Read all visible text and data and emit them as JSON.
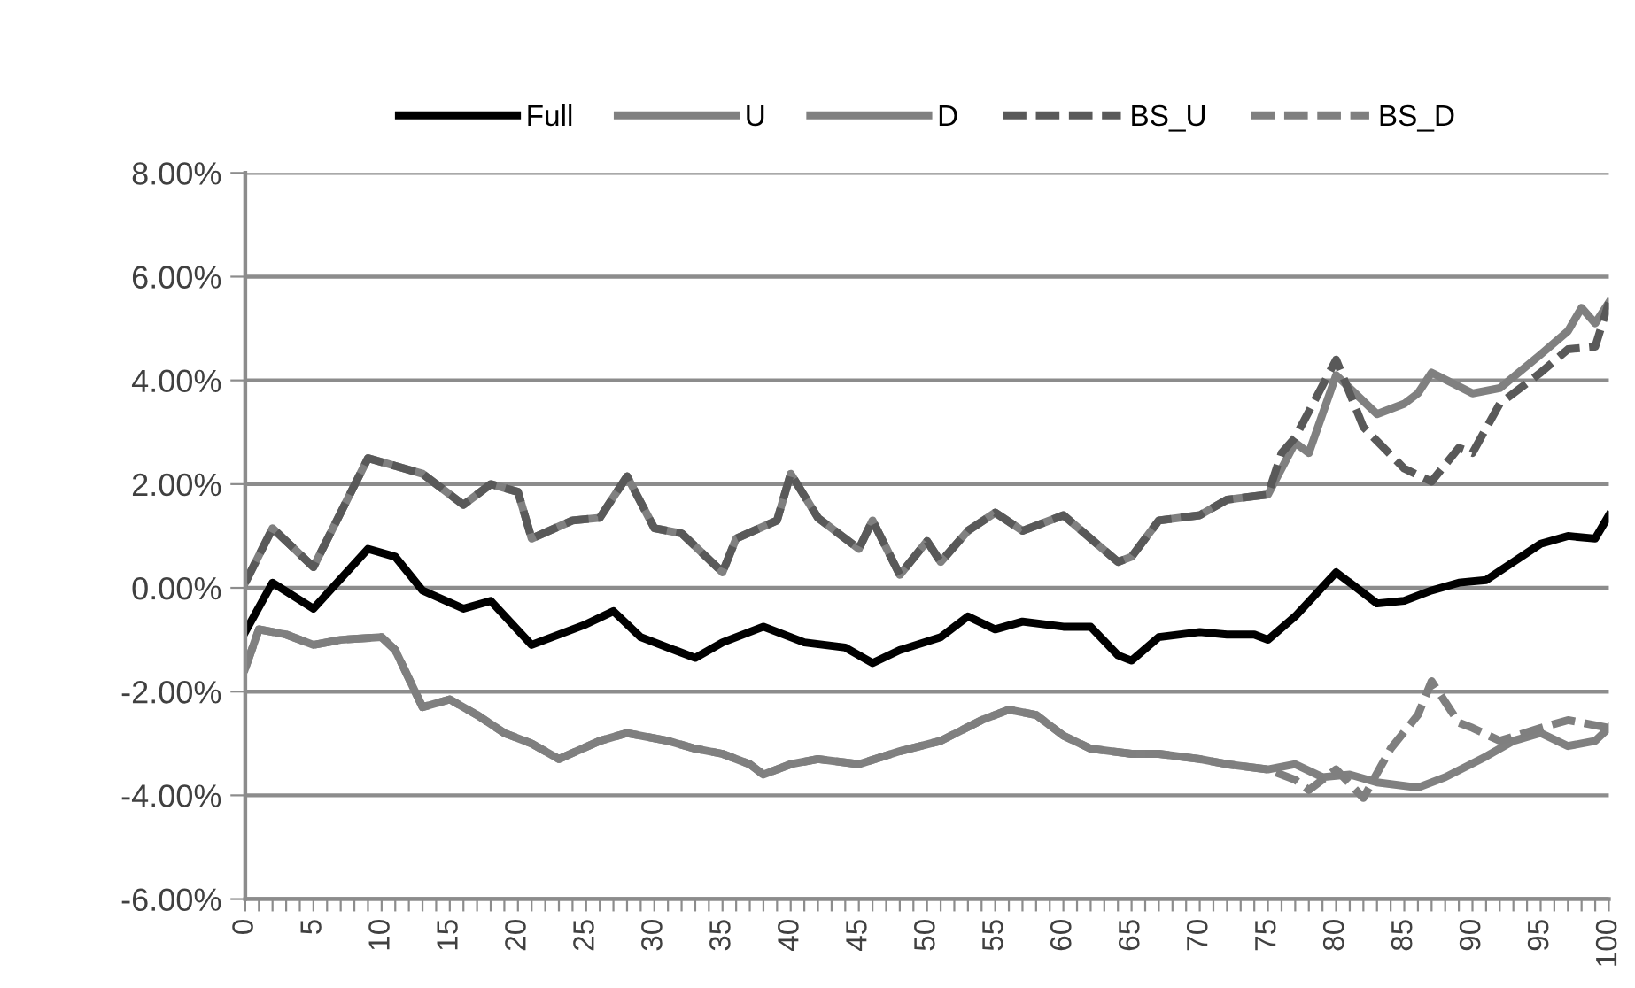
{
  "chart_data": {
    "type": "line",
    "legend": "top",
    "grid": "y",
    "xlim": [
      0,
      100
    ],
    "xticks": [
      0,
      {
        "value": 1,
        "label": null
      },
      {
        "value": 2,
        "label": null
      },
      {
        "value": 3,
        "label": null
      },
      {
        "value": 4,
        "label": null
      },
      5,
      {
        "value": 6,
        "label": null
      },
      {
        "value": 7,
        "label": null
      },
      {
        "value": 8,
        "label": null
      },
      {
        "value": 9,
        "label": null
      },
      10,
      {
        "value": 11,
        "label": null
      },
      {
        "value": 12,
        "label": null
      },
      {
        "value": 13,
        "label": null
      },
      {
        "value": 14,
        "label": null
      },
      15,
      {
        "value": 16,
        "label": null
      },
      {
        "value": 17,
        "label": null
      },
      {
        "value": 18,
        "label": null
      },
      {
        "value": 19,
        "label": null
      },
      20,
      {
        "value": 21,
        "label": null
      },
      {
        "value": 22,
        "label": null
      },
      {
        "value": 23,
        "label": null
      },
      {
        "value": 24,
        "label": null
      },
      25,
      {
        "value": 26,
        "label": null
      },
      {
        "value": 27,
        "label": null
      },
      {
        "value": 28,
        "label": null
      },
      {
        "value": 29,
        "label": null
      },
      30,
      {
        "value": 31,
        "label": null
      },
      {
        "value": 32,
        "label": null
      },
      {
        "value": 33,
        "label": null
      },
      {
        "value": 34,
        "label": null
      },
      35,
      {
        "value": 36,
        "label": null
      },
      {
        "value": 37,
        "label": null
      },
      {
        "value": 38,
        "label": null
      },
      {
        "value": 39,
        "label": null
      },
      40,
      {
        "value": 41,
        "label": null
      },
      {
        "value": 42,
        "label": null
      },
      {
        "value": 43,
        "label": null
      },
      {
        "value": 44,
        "label": null
      },
      45,
      {
        "value": 46,
        "label": null
      },
      {
        "value": 47,
        "label": null
      },
      {
        "value": 48,
        "label": null
      },
      {
        "value": 49,
        "label": null
      },
      50,
      {
        "value": 51,
        "label": null
      },
      {
        "value": 52,
        "label": null
      },
      {
        "value": 53,
        "label": null
      },
      {
        "value": 54,
        "label": null
      },
      55,
      {
        "value": 56,
        "label": null
      },
      {
        "value": 57,
        "label": null
      },
      {
        "value": 58,
        "label": null
      },
      {
        "value": 59,
        "label": null
      },
      60,
      {
        "value": 61,
        "label": null
      },
      {
        "value": 62,
        "label": null
      },
      {
        "value": 63,
        "label": null
      },
      {
        "value": 64,
        "label": null
      },
      65,
      {
        "value": 66,
        "label": null
      },
      {
        "value": 67,
        "label": null
      },
      {
        "value": 68,
        "label": null
      },
      {
        "value": 69,
        "label": null
      },
      70,
      {
        "value": 71,
        "label": null
      },
      {
        "value": 72,
        "label": null
      },
      {
        "value": 73,
        "label": null
      },
      {
        "value": 74,
        "label": null
      },
      75,
      {
        "value": 76,
        "label": null
      },
      {
        "value": 77,
        "label": null
      },
      {
        "value": 78,
        "label": null
      },
      {
        "value": 79,
        "label": null
      },
      80,
      {
        "value": 81,
        "label": null
      },
      {
        "value": 82,
        "label": null
      },
      {
        "value": 83,
        "label": null
      },
      {
        "value": 84,
        "label": null
      },
      85,
      {
        "value": 86,
        "label": null
      },
      {
        "value": 87,
        "label": null
      },
      {
        "value": 88,
        "label": null
      },
      {
        "value": 89,
        "label": null
      },
      90,
      {
        "value": 91,
        "label": null
      },
      {
        "value": 92,
        "label": null
      },
      {
        "value": 93,
        "label": null
      },
      {
        "value": 94,
        "label": null
      },
      95,
      {
        "value": 96,
        "label": null
      },
      {
        "value": 97,
        "label": null
      },
      {
        "value": 98,
        "label": null
      },
      {
        "value": 99,
        "label": null
      },
      100
    ],
    "ylim": [
      -6,
      8
    ],
    "yticks": [
      {
        "value": -6,
        "label": "-6.00%"
      },
      {
        "value": -4,
        "label": "-4.00%"
      },
      {
        "value": -2,
        "label": "-2.00%"
      },
      {
        "value": 0,
        "label": "0.00%"
      },
      {
        "value": 2,
        "label": "2.00%"
      },
      {
        "value": 4,
        "label": "4.00%"
      },
      {
        "value": 6,
        "label": "6.00%"
      },
      {
        "value": 8,
        "label": "8.00%"
      }
    ],
    "series": [
      {
        "name": "Full",
        "color": "#000000",
        "line_style": "solid",
        "x": [
          0,
          2,
          5,
          9,
          11,
          13,
          16,
          18,
          21,
          25,
          27,
          29,
          33,
          35,
          38,
          41,
          44,
          46,
          48,
          51,
          53,
          55,
          57,
          60,
          62,
          64,
          65,
          67,
          70,
          72,
          74,
          75,
          77,
          80,
          83,
          85,
          87,
          89,
          91,
          93,
          95,
          97,
          99,
          100
        ],
        "values": [
          -0.85,
          0.1,
          -0.4,
          0.75,
          0.6,
          -0.05,
          -0.4,
          -0.25,
          -1.1,
          -0.7,
          -0.45,
          -0.95,
          -1.35,
          -1.05,
          -0.75,
          -1.05,
          -1.15,
          -1.45,
          -1.2,
          -0.95,
          -0.55,
          -0.8,
          -0.65,
          -0.75,
          -0.75,
          -1.3,
          -1.4,
          -0.95,
          -0.85,
          -0.9,
          -0.9,
          -1.0,
          -0.55,
          0.3,
          -0.3,
          -0.25,
          -0.05,
          0.1,
          0.15,
          0.5,
          0.85,
          1.0,
          0.95,
          1.4
        ]
      },
      {
        "name": "U",
        "color": "#808080",
        "line_style": "solid",
        "x": [
          0,
          2,
          5,
          9,
          11,
          13,
          16,
          18,
          20,
          21,
          24,
          26,
          28,
          30,
          32,
          35,
          36,
          39,
          40,
          42,
          45,
          46,
          48,
          50,
          51,
          53,
          55,
          57,
          60,
          62,
          64,
          65,
          67,
          70,
          72,
          75,
          77,
          78,
          80,
          83,
          85,
          86,
          87,
          90,
          92,
          95,
          97,
          98,
          99,
          100
        ],
        "values": [
          0.1,
          1.15,
          0.4,
          2.5,
          2.35,
          2.2,
          1.6,
          2.0,
          1.85,
          0.95,
          1.3,
          1.35,
          2.15,
          1.15,
          1.05,
          0.3,
          0.95,
          1.3,
          2.2,
          1.35,
          0.75,
          1.3,
          0.25,
          0.9,
          0.5,
          1.1,
          1.45,
          1.1,
          1.4,
          0.95,
          0.5,
          0.6,
          1.3,
          1.4,
          1.7,
          1.8,
          2.8,
          2.6,
          4.1,
          3.35,
          3.55,
          3.75,
          4.15,
          3.75,
          3.85,
          4.5,
          4.95,
          5.4,
          5.1,
          5.5
        ]
      },
      {
        "name": "D",
        "color": "#808080",
        "line_style": "solid",
        "x": [
          0,
          1,
          3,
          5,
          7,
          10,
          11,
          13,
          15,
          17,
          19,
          21,
          23,
          26,
          28,
          31,
          33,
          35,
          37,
          38,
          40,
          42,
          45,
          48,
          51,
          54,
          56,
          58,
          60,
          62,
          65,
          67,
          70,
          72,
          75,
          77,
          79,
          81,
          83,
          86,
          88,
          91,
          93,
          95,
          97,
          99,
          100
        ],
        "values": [
          -1.55,
          -0.8,
          -0.9,
          -1.1,
          -1.0,
          -0.95,
          -1.2,
          -2.3,
          -2.15,
          -2.45,
          -2.8,
          -3.0,
          -3.3,
          -2.95,
          -2.8,
          -2.95,
          -3.1,
          -3.2,
          -3.4,
          -3.6,
          -3.4,
          -3.3,
          -3.4,
          -3.15,
          -2.95,
          -2.55,
          -2.35,
          -2.45,
          -2.85,
          -3.1,
          -3.2,
          -3.2,
          -3.3,
          -3.4,
          -3.5,
          -3.4,
          -3.65,
          -3.6,
          -3.75,
          -3.85,
          -3.65,
          -3.25,
          -2.95,
          -2.8,
          -3.05,
          -2.95,
          -2.7
        ]
      },
      {
        "name": "BS_U",
        "color": "#595959",
        "line_style": "dashed",
        "x": [
          0,
          2,
          5,
          9,
          11,
          13,
          16,
          18,
          20,
          21,
          24,
          26,
          28,
          30,
          32,
          35,
          36,
          39,
          40,
          42,
          45,
          46,
          48,
          50,
          51,
          53,
          55,
          57,
          60,
          62,
          64,
          65,
          67,
          70,
          72,
          75,
          76,
          77,
          78,
          80,
          82,
          85,
          87,
          89,
          90,
          92,
          95,
          97,
          99,
          100
        ],
        "values": [
          0.1,
          1.15,
          0.4,
          2.5,
          2.35,
          2.2,
          1.6,
          2.0,
          1.85,
          0.95,
          1.3,
          1.35,
          2.15,
          1.15,
          1.05,
          0.3,
          0.95,
          1.3,
          2.2,
          1.35,
          0.75,
          1.3,
          0.25,
          0.9,
          0.5,
          1.1,
          1.45,
          1.1,
          1.4,
          0.95,
          0.5,
          0.6,
          1.3,
          1.4,
          1.7,
          1.8,
          2.6,
          2.9,
          3.4,
          4.4,
          3.1,
          2.3,
          2.05,
          2.7,
          2.6,
          3.55,
          4.15,
          4.6,
          4.65,
          5.5
        ]
      },
      {
        "name": "BS_D",
        "color": "#7f7f7f",
        "line_style": "dashed",
        "x": [
          0,
          1,
          3,
          5,
          7,
          10,
          11,
          13,
          15,
          17,
          19,
          21,
          23,
          26,
          28,
          31,
          33,
          35,
          37,
          38,
          40,
          42,
          45,
          48,
          51,
          54,
          56,
          58,
          60,
          62,
          65,
          67,
          70,
          72,
          75,
          77,
          78,
          80,
          82,
          84,
          86,
          87,
          89,
          90,
          92,
          95,
          97,
          100
        ],
        "values": [
          -1.55,
          -0.8,
          -0.9,
          -1.1,
          -1.0,
          -0.95,
          -1.2,
          -2.3,
          -2.15,
          -2.45,
          -2.8,
          -3.0,
          -3.3,
          -2.95,
          -2.8,
          -2.95,
          -3.1,
          -3.2,
          -3.4,
          -3.6,
          -3.4,
          -3.3,
          -3.4,
          -3.15,
          -2.95,
          -2.55,
          -2.35,
          -2.45,
          -2.85,
          -3.1,
          -3.2,
          -3.2,
          -3.3,
          -3.4,
          -3.5,
          -3.7,
          -3.9,
          -3.5,
          -4.05,
          -3.1,
          -2.45,
          -1.8,
          -2.6,
          -2.7,
          -2.95,
          -2.7,
          -2.55,
          -2.7
        ]
      }
    ]
  }
}
